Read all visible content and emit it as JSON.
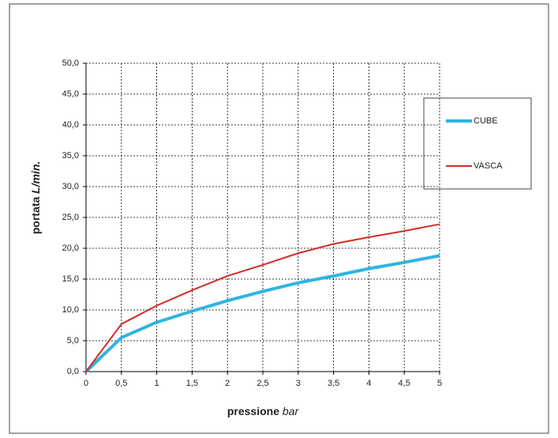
{
  "chart_data": {
    "type": "line",
    "x_label": "pressione",
    "x_label_unit": "bar",
    "y_label": "portata",
    "y_label_unit": "L/min.",
    "x": [
      0,
      0.5,
      1,
      1.5,
      2,
      2.5,
      3,
      3.5,
      4,
      4.5,
      5
    ],
    "series": [
      {
        "name": "CUBE",
        "color": "#2fb4e0",
        "values": [
          0,
          5.5,
          8,
          9.8,
          11.5,
          13,
          14.4,
          15.5,
          16.7,
          17.7,
          18.8
        ]
      },
      {
        "name": "VASCA",
        "color": "#d42a24",
        "values": [
          0,
          7.7,
          10.7,
          13.2,
          15.5,
          17.3,
          19.2,
          20.7,
          21.8,
          22.8,
          23.9
        ]
      }
    ],
    "xlim": [
      0,
      5
    ],
    "xticks": [
      0,
      {
        "value": 0.5,
        "label": "0,5"
      },
      1,
      {
        "value": 1.5,
        "label": "1,5"
      },
      2,
      {
        "value": 2.5,
        "label": "2,5"
      },
      3,
      {
        "value": 3.5,
        "label": "3,5"
      },
      4,
      {
        "value": 4.5,
        "label": "4,5"
      },
      5
    ],
    "ylim": [
      0,
      50
    ],
    "yticks": [
      {
        "value": 0,
        "label": "0,0"
      },
      {
        "value": 5,
        "label": "5,0"
      },
      {
        "value": 10,
        "label": "10,0"
      },
      {
        "value": 15,
        "label": "15,0"
      },
      {
        "value": 20,
        "label": "20,0"
      },
      {
        "value": 25,
        "label": "25,0"
      },
      {
        "value": 30,
        "label": "30,0"
      },
      {
        "value": 35,
        "label": "35,0"
      },
      {
        "value": 40,
        "label": "40,0"
      },
      {
        "value": 45,
        "label": "45,0"
      },
      {
        "value": 50,
        "label": "50,0"
      }
    ],
    "grid": true,
    "legend": "right"
  }
}
